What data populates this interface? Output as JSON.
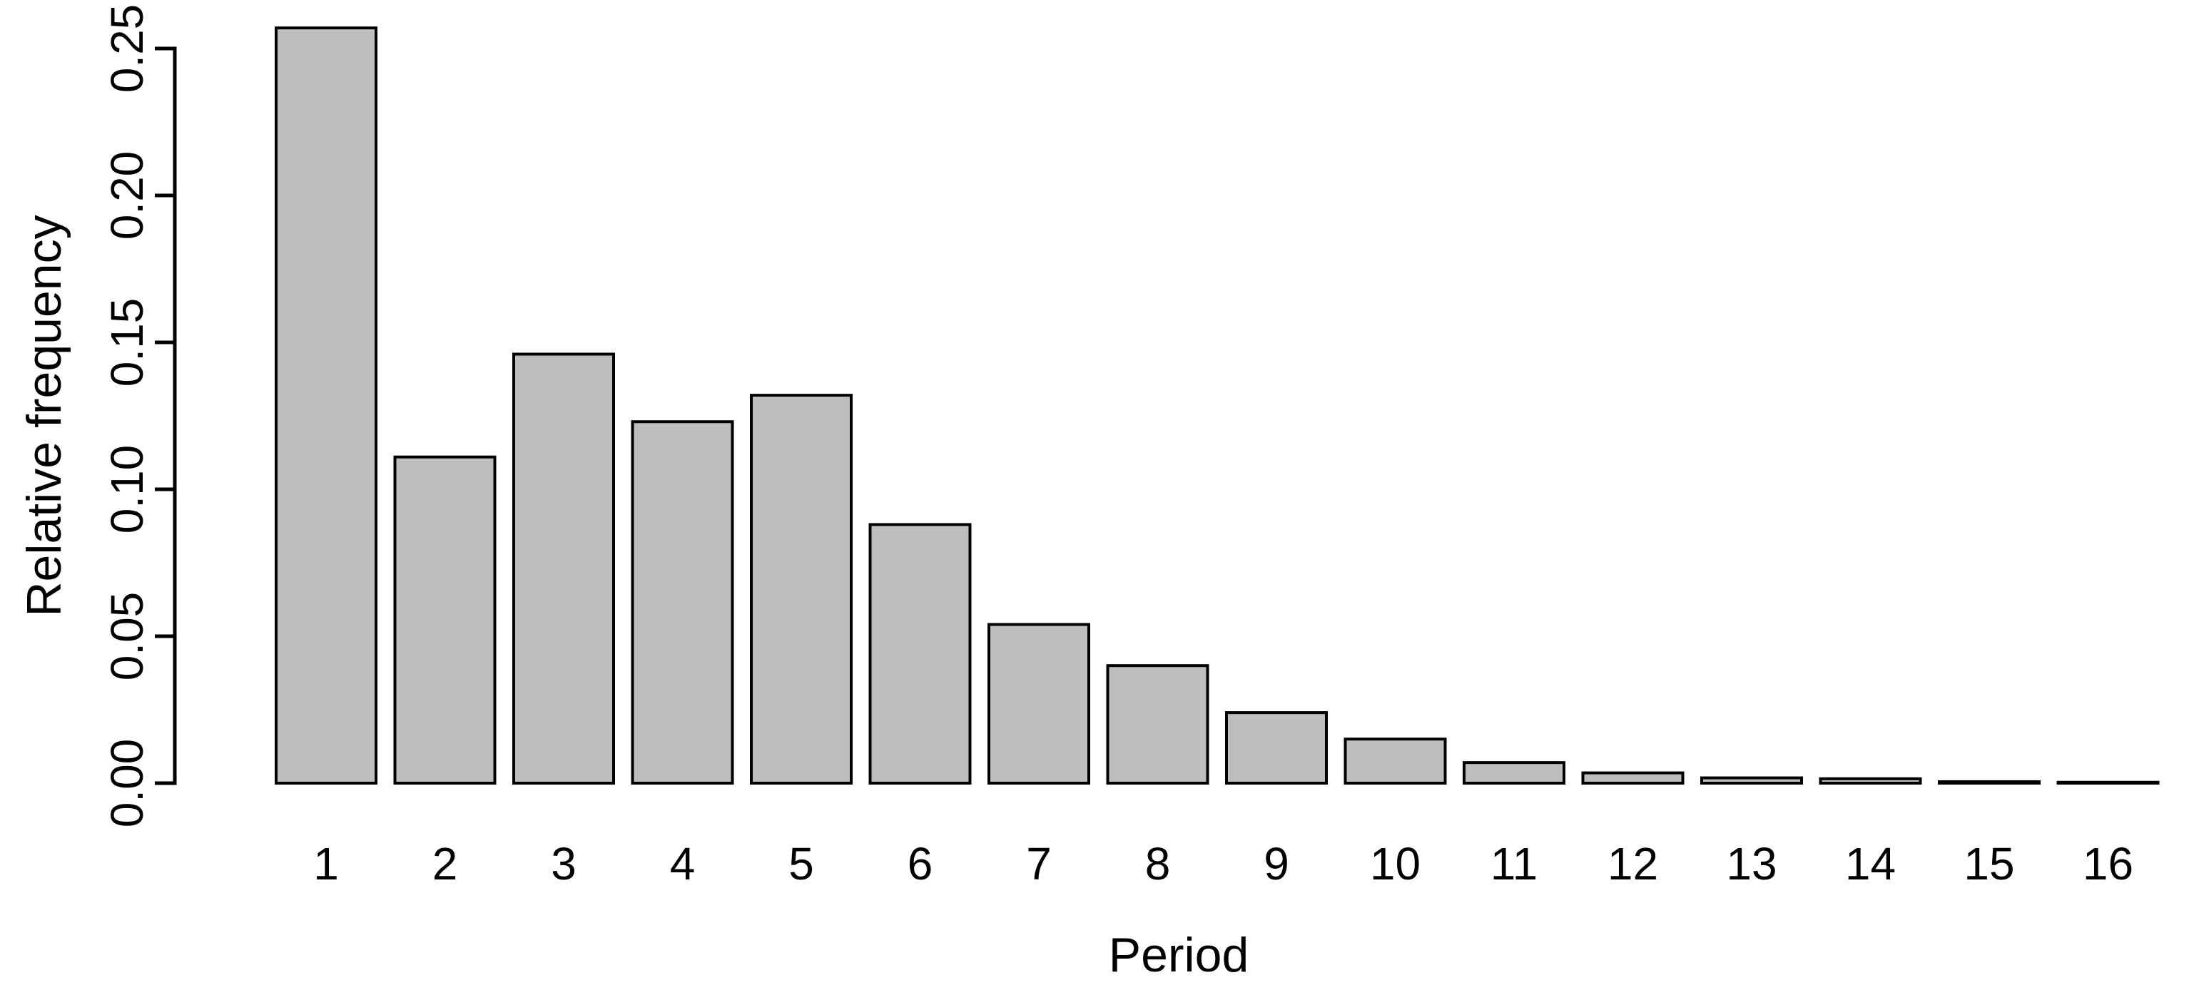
{
  "chart_data": {
    "type": "bar",
    "title": "",
    "xlabel": "Period",
    "ylabel": "Relative frequency",
    "categories": [
      "1",
      "2",
      "3",
      "4",
      "5",
      "6",
      "7",
      "8",
      "9",
      "10",
      "11",
      "12",
      "13",
      "14",
      "15",
      "16"
    ],
    "values": [
      0.257,
      0.111,
      0.146,
      0.123,
      0.132,
      0.088,
      0.054,
      0.04,
      0.024,
      0.015,
      0.007,
      0.0035,
      0.0018,
      0.0015,
      0.0005,
      0.0003
    ],
    "ylim": [
      0,
      0.26
    ],
    "yticks": [
      "0.00",
      "0.05",
      "0.10",
      "0.15",
      "0.20",
      "0.25"
    ],
    "grid": false,
    "legend_position": "none",
    "bar_fill_color": "#bebebe",
    "bar_border_color": "#000000",
    "axis_color": "#000000",
    "text_color": "#000000",
    "background_color": "#ffffff"
  }
}
